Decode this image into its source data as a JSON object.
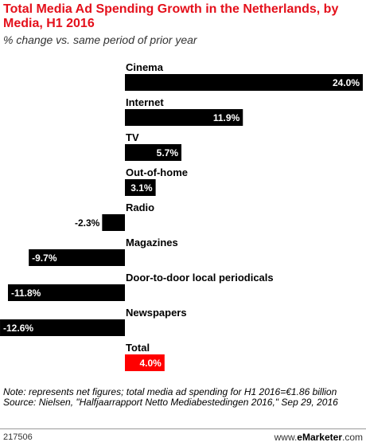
{
  "header": {
    "title": "Total Media Ad Spending Growth in the Netherlands, by Media, H1 2016",
    "subtitle": "% change vs. same period of prior year"
  },
  "chart_data": {
    "type": "bar",
    "orientation": "horizontal",
    "title": "Total Media Ad Spending Growth in the Netherlands, by Media, H1 2016",
    "subtitle": "% change vs. same period of prior year",
    "categories": [
      "Cinema",
      "Internet",
      "TV",
      "Out-of-home",
      "Radio",
      "Magazines",
      "Door-to-door local periodicals",
      "Newspapers",
      "Total"
    ],
    "values": [
      24.0,
      11.9,
      5.7,
      3.1,
      -2.3,
      -9.7,
      -11.8,
      -12.6,
      4.0
    ],
    "value_labels": [
      "24.0%",
      "11.9%",
      "5.7%",
      "3.1%",
      "-2.3%",
      "-9.7%",
      "-11.8%",
      "-12.6%",
      "4.0%"
    ],
    "bar_colors": [
      "#000000",
      "#000000",
      "#000000",
      "#000000",
      "#000000",
      "#000000",
      "#000000",
      "#000000",
      "#ff0000"
    ],
    "category_label_colors": [
      "#000000",
      "#000000",
      "#000000",
      "#000000",
      "#000000",
      "#000000",
      "#000000",
      "#000000",
      "#e4101b"
    ],
    "xlim": [
      -13,
      24
    ],
    "grid": false,
    "legend": "none"
  },
  "notes": {
    "note": "Note: represents net figures; total media ad spending for H1 2016=€1.86 billion",
    "source": "Source: Nielsen, \"Halfjaarrapport Netto Mediabestedingen 2016,\" Sep 29, 2016"
  },
  "footer": {
    "chart_id": "217506",
    "brand_prefix": "www.",
    "brand_name": "eMarketer",
    "brand_suffix": ".com"
  }
}
